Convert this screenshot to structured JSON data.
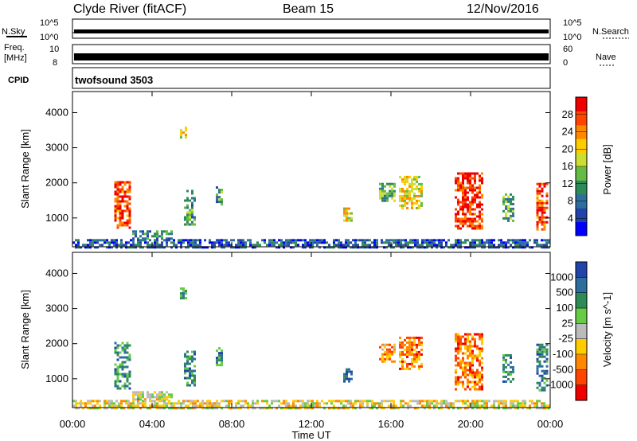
{
  "header": {
    "station": "Clyde River (fitACF)",
    "beam": "Beam 15",
    "date": "12/Nov/2016"
  },
  "nsky_panel": {
    "left_label": "N.Sky",
    "left_ticks": [
      "10^5",
      "10^0"
    ],
    "right_label": "N.Search",
    "right_ticks": [
      "10^5",
      "10^0"
    ]
  },
  "freq_panel": {
    "left_label_1": "Freq.",
    "left_label_2": "[MHz]",
    "left_ticks": [
      "10",
      "8"
    ],
    "right_label": "Nave",
    "right_ticks": [
      "60",
      "0"
    ]
  },
  "cpid_panel": {
    "label": "CPID",
    "program": "twofsound 3503"
  },
  "x_axis": {
    "label": "Time UT",
    "ticks": [
      "00:00",
      "04:00",
      "08:00",
      "12:00",
      "16:00",
      "20:00",
      "00:00"
    ]
  },
  "chart_data": [
    {
      "type": "heatmap",
      "name": "power",
      "ylabel": "Slant Range [km]",
      "xlim_hours": [
        0,
        24
      ],
      "ylim": [
        180,
        4600
      ],
      "yticks": [
        1000,
        2000,
        3000,
        4000
      ],
      "colorbar": {
        "label": "Power [dB]",
        "ticks": [
          "28",
          "24",
          "20",
          "16",
          "12",
          "8",
          "4"
        ],
        "colors": [
          "#0000ff",
          "#2244aa",
          "#2e6e9e",
          "#2e8b57",
          "#66bb44",
          "#ccdd33",
          "#ffcc00",
          "#ff8800",
          "#ff4400",
          "#ee0000"
        ]
      },
      "patches": [
        {
          "t0": 2.1,
          "t1": 2.9,
          "r0": 700,
          "r1": 2050,
          "val": 0.85
        },
        {
          "t0": 5.4,
          "t1": 5.7,
          "r0": 3300,
          "r1": 3600,
          "val": 0.6
        },
        {
          "t0": 5.6,
          "t1": 6.1,
          "r0": 800,
          "r1": 1800,
          "val": 0.35
        },
        {
          "t0": 7.2,
          "t1": 7.5,
          "r0": 1400,
          "r1": 1900,
          "val": 0.35
        },
        {
          "t0": 13.6,
          "t1": 14.0,
          "r0": 900,
          "r1": 1300,
          "val": 0.6
        },
        {
          "t0": 15.4,
          "t1": 16.2,
          "r0": 1500,
          "r1": 2000,
          "val": 0.45
        },
        {
          "t0": 16.4,
          "t1": 17.6,
          "r0": 1300,
          "r1": 2200,
          "val": 0.6
        },
        {
          "t0": 19.2,
          "t1": 20.6,
          "r0": 700,
          "r1": 2300,
          "val": 0.9
        },
        {
          "t0": 21.6,
          "t1": 22.1,
          "r0": 900,
          "r1": 1700,
          "val": 0.4
        },
        {
          "t0": 23.3,
          "t1": 23.8,
          "r0": 700,
          "r1": 2000,
          "val": 0.85
        },
        {
          "t0": 3.0,
          "t1": 5.0,
          "r0": 400,
          "r1": 650,
          "val": 0.3
        },
        {
          "t0": 0.0,
          "t1": 24.0,
          "r0": 180,
          "r1": 400,
          "val": 0.2
        }
      ]
    },
    {
      "type": "heatmap",
      "name": "velocity",
      "ylabel": "Slant Range [km]",
      "xlim_hours": [
        0,
        24
      ],
      "ylim": [
        180,
        4600
      ],
      "yticks": [
        1000,
        2000,
        3000,
        4000
      ],
      "colorbar": {
        "label": "Velocity [m s^-1]",
        "ticks": [
          "1000",
          "500",
          "100",
          "25",
          "-25",
          "-100",
          "-500",
          "-1000"
        ],
        "colors": [
          "#ee0000",
          "#ff4400",
          "#ff8800",
          "#ffcc00",
          "#bbbbbb",
          "#66cc44",
          "#2e8b57",
          "#2e6e9e",
          "#2244aa"
        ]
      },
      "patches": [
        {
          "t0": 2.1,
          "t1": 2.9,
          "r0": 700,
          "r1": 2050,
          "val": 0.75
        },
        {
          "t0": 5.4,
          "t1": 5.7,
          "r0": 3300,
          "r1": 3600,
          "val": 0.7
        },
        {
          "t0": 5.6,
          "t1": 6.1,
          "r0": 800,
          "r1": 1800,
          "val": 0.75
        },
        {
          "t0": 7.2,
          "t1": 7.5,
          "r0": 1400,
          "r1": 1900,
          "val": 0.75
        },
        {
          "t0": 13.6,
          "t1": 14.0,
          "r0": 900,
          "r1": 1300,
          "val": 0.85
        },
        {
          "t0": 15.4,
          "t1": 16.2,
          "r0": 1500,
          "r1": 2000,
          "val": 0.3
        },
        {
          "t0": 16.4,
          "t1": 17.6,
          "r0": 1300,
          "r1": 2200,
          "val": 0.25
        },
        {
          "t0": 19.2,
          "t1": 20.6,
          "r0": 700,
          "r1": 2300,
          "val": 0.25
        },
        {
          "t0": 21.6,
          "t1": 22.1,
          "r0": 900,
          "r1": 1700,
          "val": 0.75
        },
        {
          "t0": 23.3,
          "t1": 23.8,
          "r0": 700,
          "r1": 2000,
          "val": 0.8
        },
        {
          "t0": 3.0,
          "t1": 5.0,
          "r0": 400,
          "r1": 650,
          "val": 0.5
        },
        {
          "t0": 0.0,
          "t1": 24.0,
          "r0": 180,
          "r1": 400,
          "val": 0.45
        }
      ]
    }
  ]
}
